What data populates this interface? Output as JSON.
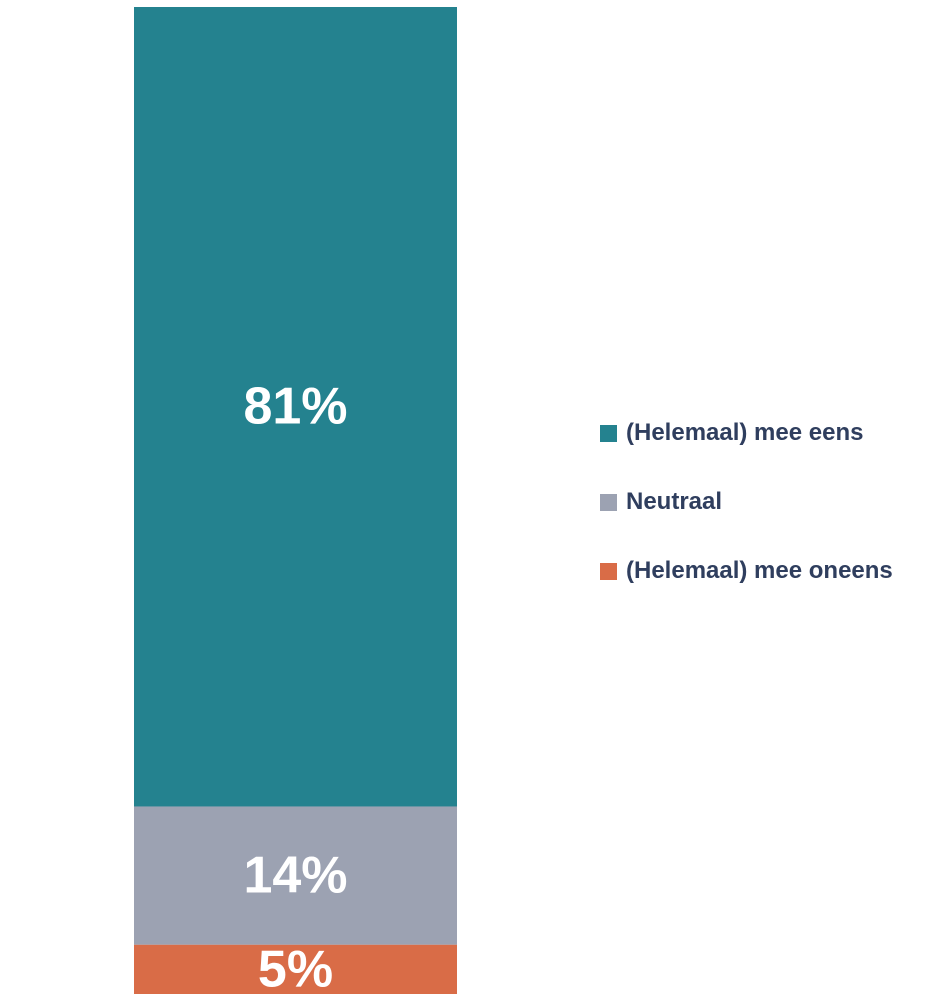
{
  "chart_data": {
    "type": "bar",
    "stacked": true,
    "orientation": "vertical",
    "categories": [
      ""
    ],
    "series": [
      {
        "name": "(Helemaal) mee eens",
        "values": [
          81
        ],
        "label": "81%",
        "color": "#24828f"
      },
      {
        "name": "Neutraal",
        "values": [
          14
        ],
        "label": "14%",
        "color": "#9ca2b2"
      },
      {
        "name": "(Helemaal) mee oneens",
        "values": [
          5
        ],
        "label": "5%",
        "color": "#d96c47"
      }
    ],
    "stack_order": "bottom-to-top: (Helemaal) mee oneens, Neutraal, (Helemaal) mee eens",
    "ylim": [
      0,
      100
    ],
    "grid": false,
    "legend_position": "right"
  },
  "colors": {
    "legend_text": "#2f3e5e",
    "data_label": "#ffffff",
    "background": "#ffffff"
  }
}
